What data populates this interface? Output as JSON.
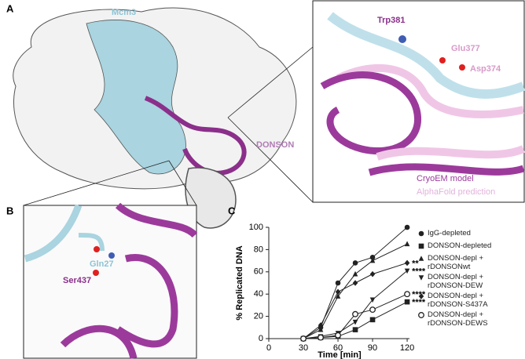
{
  "panels": {
    "a": {
      "label": "A",
      "mcm3": "Mcm3",
      "donson": "DONSON"
    },
    "inset": {
      "trp": "Trp381",
      "glu": "Glu377",
      "asp": "Asp374",
      "cryoem": "CryoEM model",
      "alphafold": "AlphaFold prediction"
    },
    "b": {
      "label": "B",
      "gln": "Gln27",
      "ser": "Ser437"
    },
    "c": {
      "label": "C"
    }
  },
  "chart_data": {
    "type": "line",
    "x_label": "Time [min]",
    "y_label": "% Replicated DNA",
    "x": [
      30,
      45,
      60,
      75,
      90,
      120
    ],
    "xlim": [
      0,
      122
    ],
    "xticks": [
      0,
      30,
      60,
      90,
      120
    ],
    "ylim": [
      0,
      100
    ],
    "yticks": [
      0,
      20,
      40,
      60,
      80,
      100
    ],
    "series": [
      {
        "name": "IgG-depleted",
        "color": "#222222",
        "marker": "circle",
        "values": [
          0,
          10,
          50,
          68,
          73,
          100
        ]
      },
      {
        "name": "DONSON-depleted",
        "color": "#222222",
        "marker": "square",
        "values": [
          0,
          1,
          2,
          8,
          17,
          33
        ],
        "annotation": "****"
      },
      {
        "name": "DONSON-depl + rDONSONwt",
        "color": "#222222",
        "marker": "triangle",
        "values": [
          0,
          8,
          38,
          58,
          70,
          85
        ]
      },
      {
        "name": "DONSON-depl + rDONSON-DEW",
        "color": "#222222",
        "marker": "triangle-down",
        "values": [
          0,
          2,
          5,
          15,
          35,
          61
        ],
        "annotation": "****"
      },
      {
        "name": "DONSON-depl + rDONSON-S437A",
        "color": "#222222",
        "marker": "diamond",
        "values": [
          0,
          12,
          42,
          50,
          58,
          68
        ],
        "annotation": "**"
      },
      {
        "name": "DONSON-depl + rDONSON-DEWS",
        "color": "#222222",
        "marker": "circle-open",
        "values": [
          0,
          1,
          3,
          22,
          26,
          40
        ],
        "annotation": "****"
      }
    ]
  }
}
